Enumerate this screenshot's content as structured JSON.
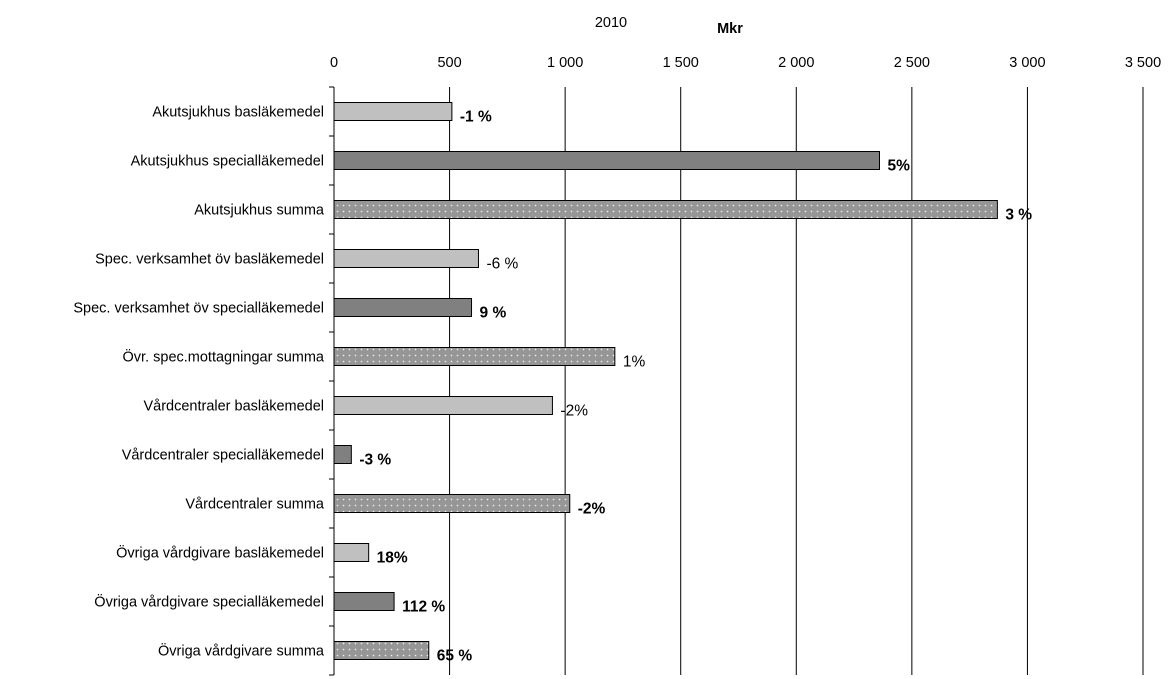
{
  "chart_data": {
    "type": "bar",
    "orientation": "horizontal",
    "title": "2010",
    "unit_label": "Mkr",
    "xlim": [
      0,
      3500
    ],
    "x_ticks": [
      0,
      500,
      1000,
      1500,
      2000,
      2500,
      3000,
      3500
    ],
    "x_tick_labels": [
      "0",
      "500",
      "1 000",
      "1 500",
      "2 000",
      "2 500",
      "3 000",
      "3 500"
    ],
    "x_axis_position": "top",
    "grid": true,
    "legend": "none",
    "categories": [
      "Akutsjukhus basläkemedel",
      "Akutsjukhus specialläkemedel",
      "Akutsjukhus summa",
      "Spec. verksamhet öv basläkemedel",
      "Spec. verksamhet öv specialläkemedel",
      "Övr. spec.mottagningar summa",
      "Vårdcentraler basläkemedel",
      "Vårdcentraler specialläkemedel",
      "Vårdcentraler summa",
      "Övriga vårdgivare basläkemedel",
      "Övriga vårdgivare specialläkemedel",
      "Övriga vårdgivare summa"
    ],
    "values": [
      510,
      2360,
      2870,
      625,
      595,
      1215,
      945,
      75,
      1020,
      150,
      260,
      410
    ],
    "bar_kinds": [
      "bas",
      "spec",
      "summa",
      "bas",
      "spec",
      "summa",
      "bas",
      "spec",
      "summa",
      "bas",
      "spec",
      "summa"
    ],
    "data_labels": [
      "-1 %",
      "5%",
      "3 %",
      "-6 %",
      "9 %",
      "1%",
      "-2%",
      "-3 %",
      "-2%",
      "18%",
      "112 %",
      "65 %"
    ],
    "data_label_bold": [
      true,
      true,
      true,
      false,
      true,
      false,
      false,
      true,
      true,
      true,
      true,
      true
    ],
    "colors": {
      "bas": "#c0c0c0",
      "spec": "#808080",
      "summa": "#969696",
      "summa_dots": "#e6e6e6",
      "bar_border": "#000000",
      "grid": "#000000"
    }
  }
}
